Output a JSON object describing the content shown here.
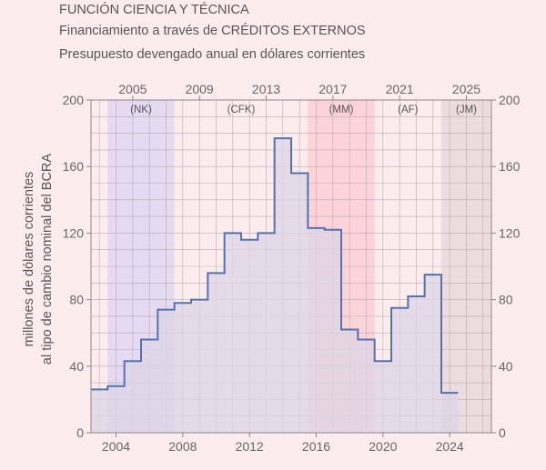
{
  "header": {
    "title": "FUNCIÓN CIENCIA Y TÉCNICA",
    "subtitle": "Financiamiento a través de CRÉDITOS EXTERNOS",
    "caption": "Presupuesto devengado anual en dólares corrientes"
  },
  "chart_data": {
    "type": "area",
    "step": true,
    "ylabel_lines": [
      "millones de dólares corrientes",
      "al tipo de cambio nominal del BCRA"
    ],
    "ylim": [
      0,
      200
    ],
    "xlim": [
      2002.5,
      2026.5
    ],
    "yticks": [
      0,
      40,
      80,
      120,
      160,
      200
    ],
    "xticks_bottom": [
      2004,
      2008,
      2012,
      2016,
      2020,
      2024
    ],
    "xticks_top": [
      2005,
      2009,
      2013,
      2017,
      2021,
      2025
    ],
    "grid": true,
    "fill_color": "#dcd6e6",
    "line_color": "#5572b0",
    "series": [
      {
        "x": [
          2003,
          2004,
          2005,
          2006,
          2007,
          2008,
          2009,
          2010,
          2011,
          2012,
          2013,
          2014,
          2015,
          2016,
          2017,
          2018,
          2019,
          2020,
          2021,
          2022,
          2023,
          2024
        ],
        "values": [
          26,
          28,
          43,
          56,
          74,
          78,
          80,
          96,
          120,
          116,
          120,
          177,
          156,
          123,
          122,
          62,
          56,
          43,
          75,
          82,
          95,
          24
        ]
      }
    ],
    "periods": [
      {
        "label": "(NK)",
        "start": 2003.5,
        "end": 2007.5,
        "color": "#e5daf2"
      },
      {
        "label": "(CFK)",
        "start": 2007.5,
        "end": 2015.5,
        "color": ""
      },
      {
        "label": "(MM)",
        "start": 2015.5,
        "end": 2019.5,
        "color": "#fdd3da"
      },
      {
        "label": "(AF)",
        "start": 2019.5,
        "end": 2023.5,
        "color": ""
      },
      {
        "label": "(JM)",
        "start": 2023.5,
        "end": 2026.5,
        "color": "#ecdcdf"
      }
    ]
  }
}
